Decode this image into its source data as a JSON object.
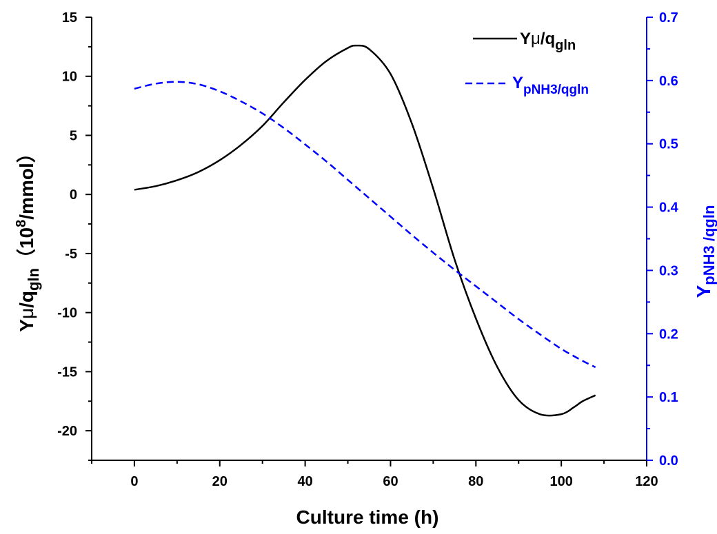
{
  "chart_data": {
    "type": "line",
    "x_axis": {
      "label": "Culture time (h)",
      "min": -10,
      "max": 120,
      "ticks": [
        0,
        20,
        40,
        60,
        80,
        100,
        120
      ]
    },
    "y_axis_left": {
      "label_parts": [
        "Y",
        "μ",
        "/q",
        "gln",
        "（10",
        "8",
        "/mmol）"
      ],
      "min": -22.5,
      "max": 15,
      "ticks": [
        15,
        10,
        5,
        0,
        -5,
        -10,
        -15,
        -20
      ],
      "color": "#000000"
    },
    "y_axis_right": {
      "label_parts": [
        "Y",
        "pNH3 /qgln"
      ],
      "min": 0.0,
      "max": 0.7,
      "ticks": [
        0.0,
        0.1,
        0.2,
        0.3,
        0.4,
        0.5,
        0.6,
        0.7
      ],
      "color": "#0000ff"
    },
    "series": [
      {
        "axis": "left",
        "style": "solid",
        "color": "#000000",
        "legend_parts": [
          "Y",
          "μ",
          "/q",
          "gln"
        ],
        "x": [
          0,
          5,
          10,
          15,
          20,
          25,
          30,
          35,
          40,
          45,
          50,
          52,
          55,
          60,
          65,
          70,
          75,
          80,
          85,
          90,
          95,
          100,
          103,
          105,
          108
        ],
        "y": [
          0.4,
          0.7,
          1.2,
          1.9,
          2.9,
          4.2,
          5.8,
          7.8,
          9.7,
          11.3,
          12.4,
          12.6,
          12.3,
          10.2,
          6.0,
          0.5,
          -5.5,
          -10.5,
          -14.6,
          -17.4,
          -18.6,
          -18.6,
          -18.0,
          -17.5,
          -17.0
        ]
      },
      {
        "axis": "right",
        "style": "dashed",
        "color": "#0000ff",
        "legend_parts": [
          "Y",
          "pNH3/qgln"
        ],
        "x": [
          0,
          5,
          10,
          15,
          20,
          25,
          30,
          35,
          40,
          45,
          50,
          55,
          60,
          65,
          70,
          75,
          80,
          85,
          90,
          95,
          100,
          105,
          108
        ],
        "y": [
          0.587,
          0.595,
          0.598,
          0.594,
          0.583,
          0.567,
          0.548,
          0.525,
          0.499,
          0.472,
          0.443,
          0.414,
          0.385,
          0.356,
          0.328,
          0.301,
          0.275,
          0.249,
          0.223,
          0.199,
          0.176,
          0.157,
          0.147
        ]
      }
    ],
    "grid": false
  }
}
